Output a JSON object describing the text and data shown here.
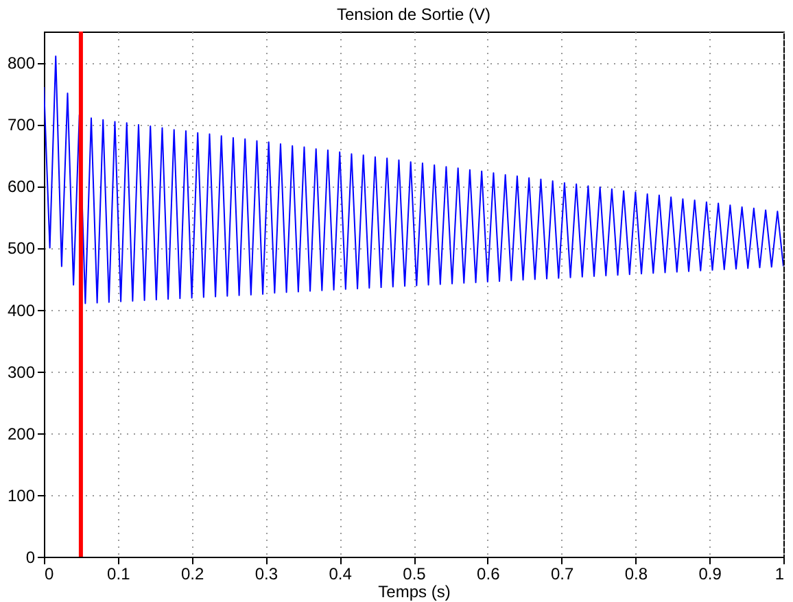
{
  "chart_data": {
    "type": "line",
    "title": "Tension de Sortie (V)",
    "xlabel": "Temps (s)",
    "x": [
      0,
      0.008,
      0.016,
      0.024,
      0.032,
      0.04,
      0.048,
      0.056,
      0.064,
      0.072,
      0.08,
      0.088,
      0.096,
      0.104,
      0.112,
      0.12,
      0.128,
      0.136,
      0.144,
      0.152,
      0.16,
      0.168,
      0.176,
      0.184,
      0.192,
      0.2,
      0.208,
      0.216,
      0.224,
      0.232,
      0.24,
      0.248,
      0.256,
      0.264,
      0.272,
      0.28,
      0.288,
      0.296,
      0.304,
      0.312,
      0.32,
      0.328,
      0.336,
      0.344,
      0.352,
      0.36,
      0.368,
      0.376,
      0.384,
      0.392,
      0.4,
      0.408,
      0.416,
      0.424,
      0.432,
      0.44,
      0.448,
      0.456,
      0.464,
      0.472,
      0.48,
      0.488,
      0.496,
      0.504,
      0.512,
      0.52,
      0.528,
      0.536,
      0.544,
      0.552,
      0.56,
      0.568,
      0.576,
      0.584,
      0.592,
      0.6,
      0.608,
      0.616,
      0.624,
      0.632,
      0.64,
      0.648,
      0.656,
      0.664,
      0.672,
      0.68,
      0.688,
      0.696,
      0.704,
      0.712,
      0.72,
      0.728,
      0.736,
      0.744,
      0.752,
      0.76,
      0.768,
      0.776,
      0.784,
      0.792,
      0.8,
      0.808,
      0.816,
      0.824,
      0.832,
      0.84,
      0.848,
      0.856,
      0.864,
      0.872,
      0.88,
      0.888,
      0.896,
      0.904,
      0.912,
      0.92,
      0.928,
      0.936,
      0.944,
      0.952,
      0.96,
      0.968,
      0.976,
      0.984,
      0.992,
      1
    ],
    "series": [
      {
        "color": "#0000ff",
        "values": [
          760,
          500,
          810,
          470,
          750,
          440,
          715,
          410,
          710,
          411,
          707,
          412,
          704,
          413,
          702,
          414,
          699,
          415,
          697,
          416,
          694,
          417,
          691,
          418,
          689,
          419,
          686,
          420,
          684,
          421,
          681,
          422,
          678,
          423,
          676,
          424,
          673,
          425,
          671,
          427,
          668,
          428,
          665,
          429,
          663,
          430,
          660,
          431,
          658,
          432,
          655,
          433,
          652,
          434,
          650,
          435,
          647,
          436,
          645,
          437,
          642,
          438,
          639,
          439,
          637,
          440,
          634,
          441,
          631,
          442,
          629,
          443,
          626,
          444,
          624,
          445,
          621,
          446,
          618,
          447,
          616,
          448,
          613,
          449,
          611,
          450,
          608,
          451,
          605,
          452,
          603,
          453,
          600,
          454,
          598,
          455,
          595,
          456,
          592,
          457,
          590,
          458,
          587,
          459,
          585,
          460,
          582,
          461,
          579,
          462,
          577,
          463,
          574,
          464,
          572,
          465,
          569,
          466,
          566,
          467,
          564,
          468,
          561,
          469,
          559,
          470
        ]
      }
    ],
    "xlim": [
      0,
      1
    ],
    "xticks": [
      0,
      0.1,
      0.2,
      0.3,
      0.4,
      0.5,
      0.6,
      0.7,
      0.8,
      0.9,
      1
    ],
    "ylim": [
      0,
      850
    ],
    "yticks": [
      0,
      100,
      200,
      300,
      400,
      500,
      600,
      700,
      800
    ],
    "ref_lines": [
      {
        "axis": "x",
        "value": 0.05,
        "color": "#ff0000"
      }
    ],
    "grid": true
  }
}
